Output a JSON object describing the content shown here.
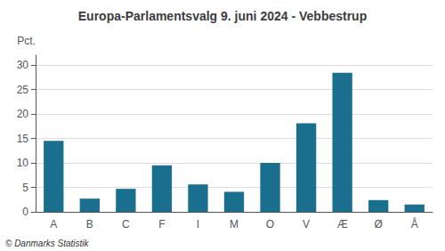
{
  "chart_data": {
    "type": "bar",
    "title": "Europa-Parlamentsvalg 9. juni 2024 - Vebbestrup",
    "categories": [
      "A",
      "B",
      "C",
      "F",
      "I",
      "M",
      "O",
      "V",
      "Æ",
      "Ø",
      "Å"
    ],
    "values": [
      14.5,
      2.7,
      4.7,
      9.5,
      5.6,
      4.1,
      10.0,
      18.1,
      28.4,
      2.4,
      1.5
    ],
    "color": "#1a6e8e",
    "ylabel": "Pct.",
    "ylim": [
      0,
      32
    ],
    "yticks": [
      0,
      5,
      10,
      15,
      20,
      25,
      30
    ],
    "grid": true,
    "annotations": [
      "© Danmarks Statistik"
    ]
  }
}
